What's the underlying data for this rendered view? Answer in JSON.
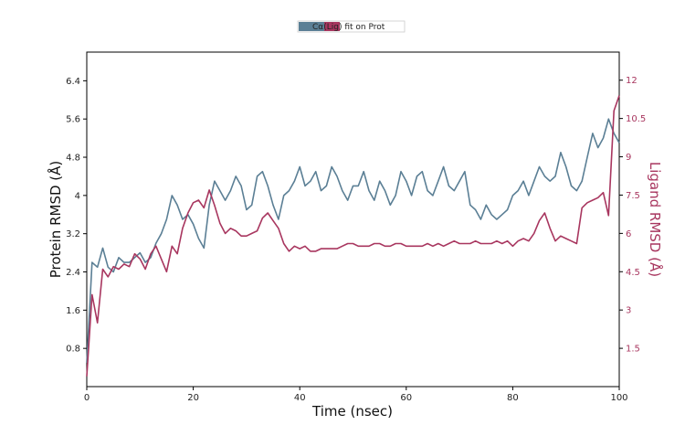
{
  "chart_data": {
    "type": "line",
    "xlabel": "Time (nsec)",
    "ylabel_left": "Protein RMSD (Å)",
    "ylabel_right": "Ligand RMSD (Å)",
    "xlim": [
      0,
      100
    ],
    "ylim_left": [
      0,
      7.0
    ],
    "ylim_right": [
      0,
      13.1
    ],
    "xticks": [
      0,
      20,
      40,
      60,
      80,
      100
    ],
    "yticks_left": [
      0.8,
      1.6,
      2.4,
      3.2,
      4.0,
      4.8,
      5.6,
      6.4
    ],
    "yticks_right": [
      1.5,
      3.0,
      4.5,
      6.0,
      7.5,
      9.0,
      10.5,
      12.0
    ],
    "legend": {
      "placement": "top-center",
      "text": "Cα(Lig) fit on Prot"
    },
    "grid": false,
    "series": [
      {
        "name": "Cα",
        "axis": "left",
        "color": "#5b7f95",
        "x": [
          0,
          1,
          2,
          3,
          4,
          5,
          6,
          7,
          8,
          9,
          10,
          11,
          12,
          13,
          14,
          15,
          16,
          17,
          18,
          19,
          20,
          21,
          22,
          23,
          24,
          25,
          26,
          27,
          28,
          29,
          30,
          31,
          32,
          33,
          34,
          35,
          36,
          37,
          38,
          39,
          40,
          41,
          42,
          43,
          44,
          45,
          46,
          47,
          48,
          49,
          50,
          51,
          52,
          53,
          54,
          55,
          56,
          57,
          58,
          59,
          60,
          61,
          62,
          63,
          64,
          65,
          66,
          67,
          68,
          69,
          70,
          71,
          72,
          73,
          74,
          75,
          76,
          77,
          78,
          79,
          80,
          81,
          82,
          83,
          84,
          85,
          86,
          87,
          88,
          89,
          90,
          91,
          92,
          93,
          94,
          95,
          96,
          97,
          98,
          99,
          100
        ],
        "values": [
          0.5,
          2.6,
          2.5,
          2.9,
          2.5,
          2.4,
          2.7,
          2.6,
          2.6,
          2.7,
          2.8,
          2.6,
          2.7,
          3.0,
          3.2,
          3.5,
          4.0,
          3.8,
          3.5,
          3.6,
          3.4,
          3.1,
          2.9,
          3.8,
          4.3,
          4.1,
          3.9,
          4.1,
          4.4,
          4.2,
          3.7,
          3.8,
          4.4,
          4.5,
          4.2,
          3.8,
          3.5,
          4.0,
          4.1,
          4.3,
          4.6,
          4.2,
          4.3,
          4.5,
          4.1,
          4.2,
          4.6,
          4.4,
          4.1,
          3.9,
          4.2,
          4.2,
          4.5,
          4.1,
          3.9,
          4.3,
          4.1,
          3.8,
          4.0,
          4.5,
          4.3,
          4.0,
          4.4,
          4.5,
          4.1,
          4.0,
          4.3,
          4.6,
          4.2,
          4.1,
          4.3,
          4.5,
          3.8,
          3.7,
          3.5,
          3.8,
          3.6,
          3.5,
          3.6,
          3.7,
          4.0,
          4.1,
          4.3,
          4.0,
          4.3,
          4.6,
          4.4,
          4.3,
          4.4,
          4.9,
          4.6,
          4.2,
          4.1,
          4.3,
          4.8,
          5.3,
          5.0,
          5.2,
          5.6,
          5.3,
          5.1
        ]
      },
      {
        "name": "(Lig) fit on Prot",
        "axis": "right",
        "color": "#a8365f",
        "x": [
          0,
          1,
          2,
          3,
          4,
          5,
          6,
          7,
          8,
          9,
          10,
          11,
          12,
          13,
          14,
          15,
          16,
          17,
          18,
          19,
          20,
          21,
          22,
          23,
          24,
          25,
          26,
          27,
          28,
          29,
          30,
          31,
          32,
          33,
          34,
          35,
          36,
          37,
          38,
          39,
          40,
          41,
          42,
          43,
          44,
          45,
          46,
          47,
          48,
          49,
          50,
          51,
          52,
          53,
          54,
          55,
          56,
          57,
          58,
          59,
          60,
          61,
          62,
          63,
          64,
          65,
          66,
          67,
          68,
          69,
          70,
          71,
          72,
          73,
          74,
          75,
          76,
          77,
          78,
          79,
          80,
          81,
          82,
          83,
          84,
          85,
          86,
          87,
          88,
          89,
          90,
          91,
          92,
          93,
          94,
          95,
          96,
          97,
          98,
          99,
          100
        ],
        "values": [
          0.4,
          3.6,
          2.5,
          4.6,
          4.3,
          4.7,
          4.6,
          4.8,
          4.7,
          5.2,
          5.0,
          4.6,
          5.2,
          5.5,
          5.0,
          4.5,
          5.5,
          5.2,
          6.2,
          6.8,
          7.2,
          7.3,
          7.0,
          7.7,
          7.1,
          6.4,
          6.0,
          6.2,
          6.1,
          5.9,
          5.9,
          6.0,
          6.1,
          6.6,
          6.8,
          6.5,
          6.2,
          5.6,
          5.3,
          5.5,
          5.4,
          5.5,
          5.3,
          5.3,
          5.4,
          5.4,
          5.4,
          5.4,
          5.5,
          5.6,
          5.6,
          5.5,
          5.5,
          5.5,
          5.6,
          5.6,
          5.5,
          5.5,
          5.6,
          5.6,
          5.5,
          5.5,
          5.5,
          5.5,
          5.6,
          5.5,
          5.6,
          5.5,
          5.6,
          5.7,
          5.6,
          5.6,
          5.6,
          5.7,
          5.6,
          5.6,
          5.6,
          5.7,
          5.6,
          5.7,
          5.5,
          5.7,
          5.8,
          5.7,
          6.0,
          6.5,
          6.8,
          6.2,
          5.7,
          5.9,
          5.8,
          5.7,
          5.6,
          7.0,
          7.2,
          7.3,
          7.4,
          7.6,
          6.7,
          10.8,
          11.4
        ]
      }
    ]
  }
}
